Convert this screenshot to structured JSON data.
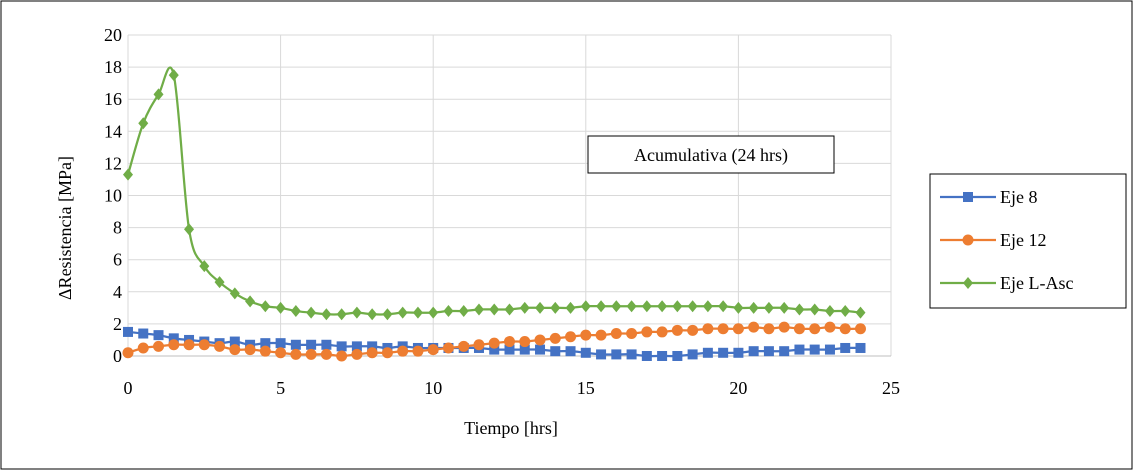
{
  "chart_data": {
    "type": "line",
    "title": "",
    "xlabel": "Tiempo [hrs]",
    "ylabel": "ΔResistencia [MPa]",
    "xlim": [
      0,
      25
    ],
    "ylim": [
      0,
      20
    ],
    "xticks": [
      "0",
      "5",
      "10",
      "15",
      "20",
      "25"
    ],
    "yticks": [
      "0",
      "2",
      "4",
      "6",
      "8",
      "10",
      "12",
      "14",
      "16",
      "18",
      "20"
    ],
    "grid": true,
    "legend_position": "right",
    "annotation": "Acumulativa (24 hrs)",
    "x": [
      0,
      0.5,
      1,
      1.5,
      2,
      2.5,
      3,
      3.5,
      4,
      4.5,
      5,
      5.5,
      6,
      6.5,
      7,
      7.5,
      8,
      8.5,
      9,
      9.5,
      10,
      10.5,
      11,
      11.5,
      12,
      12.5,
      13,
      13.5,
      14,
      14.5,
      15,
      15.5,
      16,
      16.5,
      17,
      17.5,
      18,
      18.5,
      19,
      19.5,
      20,
      20.5,
      21,
      21.5,
      22,
      22.5,
      23,
      23.5,
      24
    ],
    "series": [
      {
        "name": "Eje 8",
        "color": "#4472C4",
        "marker": "square",
        "values": [
          1.5,
          1.4,
          1.3,
          1.1,
          1.0,
          0.9,
          0.8,
          0.9,
          0.7,
          0.8,
          0.8,
          0.7,
          0.7,
          0.7,
          0.6,
          0.6,
          0.6,
          0.5,
          0.6,
          0.5,
          0.5,
          0.5,
          0.5,
          0.5,
          0.4,
          0.4,
          0.4,
          0.4,
          0.3,
          0.3,
          0.2,
          0.1,
          0.1,
          0.1,
          0.0,
          0.0,
          0.0,
          0.1,
          0.2,
          0.2,
          0.2,
          0.3,
          0.3,
          0.3,
          0.4,
          0.4,
          0.4,
          0.5,
          0.5
        ]
      },
      {
        "name": "Eje 12",
        "color": "#ED7D31",
        "marker": "circle",
        "values": [
          0.2,
          0.5,
          0.6,
          0.7,
          0.7,
          0.7,
          0.6,
          0.4,
          0.4,
          0.3,
          0.2,
          0.1,
          0.1,
          0.1,
          0.0,
          0.1,
          0.2,
          0.2,
          0.3,
          0.3,
          0.4,
          0.5,
          0.6,
          0.7,
          0.8,
          0.9,
          0.9,
          1.0,
          1.1,
          1.2,
          1.3,
          1.3,
          1.4,
          1.4,
          1.5,
          1.5,
          1.6,
          1.6,
          1.7,
          1.7,
          1.7,
          1.8,
          1.7,
          1.8,
          1.7,
          1.7,
          1.8,
          1.7,
          1.7
        ]
      },
      {
        "name": "Eje L-Asc",
        "color": "#70AD47",
        "marker": "diamond",
        "values": [
          11.3,
          14.5,
          16.3,
          17.5,
          7.9,
          5.6,
          4.6,
          3.9,
          3.4,
          3.1,
          3.0,
          2.8,
          2.7,
          2.6,
          2.6,
          2.7,
          2.6,
          2.6,
          2.7,
          2.7,
          2.7,
          2.8,
          2.8,
          2.9,
          2.9,
          2.9,
          3.0,
          3.0,
          3.0,
          3.0,
          3.1,
          3.1,
          3.1,
          3.1,
          3.1,
          3.1,
          3.1,
          3.1,
          3.1,
          3.1,
          3.0,
          3.0,
          3.0,
          3.0,
          2.9,
          2.9,
          2.8,
          2.8,
          2.7
        ]
      }
    ]
  }
}
